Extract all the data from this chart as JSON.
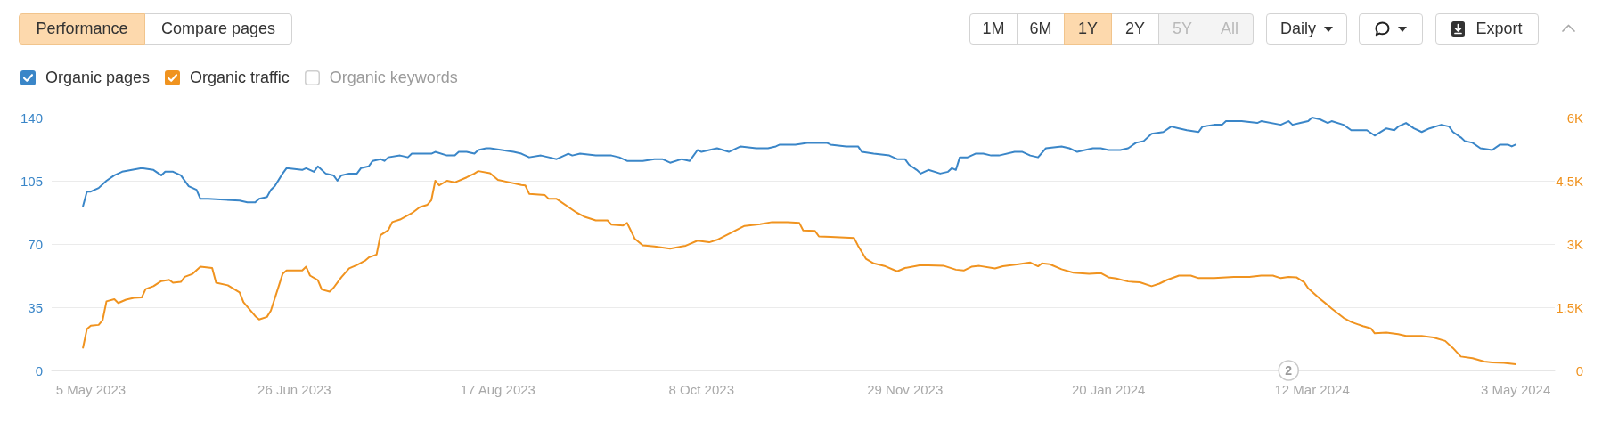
{
  "chart_data": {
    "type": "line",
    "series": [
      {
        "name": "Organic pages",
        "color": "#3a86c8",
        "axis": "y",
        "x": [
          "2023-05-03",
          "2023-05-04",
          "2023-05-05",
          "2023-05-07",
          "2023-05-09",
          "2023-05-11",
          "2023-05-13",
          "2023-05-18",
          "2023-05-21",
          "2023-05-23",
          "2023-05-24",
          "2023-05-26",
          "2023-05-28",
          "2023-05-30",
          "2023-06-01",
          "2023-06-02",
          "2023-06-04",
          "2023-06-12",
          "2023-06-14",
          "2023-06-16",
          "2023-06-17",
          "2023-06-19",
          "2023-06-20",
          "2023-06-21",
          "2023-06-23",
          "2023-06-24",
          "2023-06-28",
          "2023-06-29",
          "2023-07-01",
          "2023-07-02",
          "2023-07-04",
          "2023-07-06",
          "2023-07-07",
          "2023-07-08",
          "2023-07-10",
          "2023-07-12",
          "2023-07-13",
          "2023-07-15",
          "2023-07-16",
          "2023-07-18",
          "2023-07-19",
          "2023-07-20",
          "2023-07-23",
          "2023-07-25",
          "2023-07-26",
          "2023-07-31",
          "2023-08-01",
          "2023-08-04",
          "2023-08-06",
          "2023-08-07",
          "2023-08-09",
          "2023-08-11",
          "2023-08-12",
          "2023-08-14",
          "2023-08-15",
          "2023-08-18",
          "2023-08-21",
          "2023-08-23",
          "2023-08-25",
          "2023-08-28",
          "2023-08-30",
          "2023-09-01",
          "2023-09-04",
          "2023-09-05",
          "2023-09-07",
          "2023-09-11",
          "2023-09-15",
          "2023-09-17",
          "2023-09-19",
          "2023-09-23",
          "2023-09-26",
          "2023-09-28",
          "2023-09-30",
          "2023-10-03",
          "2023-10-05",
          "2023-10-07",
          "2023-10-08",
          "2023-10-10",
          "2023-10-12",
          "2023-10-15",
          "2023-10-18",
          "2023-10-22",
          "2023-10-25",
          "2023-10-27",
          "2023-10-28",
          "2023-11-01",
          "2023-11-04",
          "2023-11-09",
          "2023-11-10",
          "2023-11-14",
          "2023-11-17",
          "2023-11-18",
          "2023-11-21",
          "2023-11-25",
          "2023-11-27",
          "2023-11-29",
          "2023-11-30",
          "2023-12-02",
          "2023-12-03",
          "2023-12-05",
          "2023-12-08",
          "2023-12-10",
          "2023-12-11",
          "2023-12-12",
          "2023-12-13",
          "2023-12-15",
          "2023-12-17",
          "2023-12-19",
          "2023-12-21",
          "2023-12-23",
          "2023-12-27",
          "2023-12-29",
          "2023-12-31",
          "2024-01-02",
          "2024-01-04",
          "2024-01-08",
          "2024-01-10",
          "2024-01-12",
          "2024-01-16",
          "2024-01-18",
          "2024-01-20",
          "2024-01-23",
          "2024-01-25",
          "2024-01-27",
          "2024-01-29",
          "2024-01-31",
          "2024-02-03",
          "2024-02-05",
          "2024-02-07",
          "2024-02-09",
          "2024-02-12",
          "2024-02-13",
          "2024-02-16",
          "2024-02-18",
          "2024-02-19",
          "2024-02-23",
          "2024-02-27",
          "2024-02-28",
          "2024-03-04",
          "2024-03-06",
          "2024-03-07",
          "2024-03-09",
          "2024-03-11",
          "2024-03-12",
          "2024-03-14",
          "2024-03-16",
          "2024-03-17",
          "2024-03-20",
          "2024-03-22",
          "2024-03-26",
          "2024-03-28",
          "2024-03-31",
          "2024-04-02",
          "2024-04-03",
          "2024-04-05",
          "2024-04-07",
          "2024-04-09",
          "2024-04-11",
          "2024-04-14",
          "2024-04-16",
          "2024-04-17",
          "2024-04-19",
          "2024-04-20",
          "2024-04-22",
          "2024-04-24",
          "2024-04-27",
          "2024-04-29",
          "2024-05-01",
          "2024-05-02",
          "2024-05-03"
        ],
        "values": [
          91,
          99,
          99,
          101,
          105,
          108,
          110,
          112,
          111,
          108,
          110,
          110,
          108,
          102,
          100,
          95,
          95,
          94,
          93,
          93,
          95,
          96,
          100,
          102,
          109,
          112,
          111,
          112,
          110,
          113,
          109,
          108,
          105,
          108,
          109,
          109,
          112,
          113,
          116,
          117,
          116,
          118,
          119,
          118,
          120,
          120,
          121,
          119,
          119,
          121,
          121,
          120,
          122,
          123,
          123,
          122,
          121,
          120,
          118,
          119,
          118,
          117,
          120,
          119,
          120,
          119,
          119,
          118,
          116,
          116,
          117,
          117,
          115,
          117,
          116,
          122,
          121,
          122,
          123,
          121,
          124,
          123,
          123,
          124,
          125,
          125,
          126,
          126,
          125,
          124,
          124,
          121,
          120,
          119,
          117,
          117,
          114,
          111,
          109,
          111,
          109,
          110,
          112,
          111,
          118,
          118,
          120,
          120,
          119,
          119,
          121,
          121,
          119,
          118,
          123,
          124,
          123,
          121,
          123,
          123,
          122,
          122,
          123,
          126,
          127,
          131,
          132,
          135,
          134,
          133,
          132,
          135,
          136,
          136,
          138,
          138,
          137,
          138,
          136,
          138,
          136,
          137,
          138,
          140,
          139,
          137,
          138,
          136,
          133,
          133,
          130,
          134,
          133,
          135,
          137,
          134,
          132,
          134,
          136,
          135,
          132,
          129,
          127,
          126,
          123,
          122,
          125,
          125,
          124,
          125
        ]
      },
      {
        "name": "Organic traffic",
        "color": "#f0931f",
        "axis": "y2",
        "x": [
          "2023-05-03",
          "2023-05-04",
          "2023-05-05",
          "2023-05-07",
          "2023-05-08",
          "2023-05-09",
          "2023-05-11",
          "2023-05-12",
          "2023-05-14",
          "2023-05-16",
          "2023-05-18",
          "2023-05-19",
          "2023-05-21",
          "2023-05-23",
          "2023-05-25",
          "2023-05-26",
          "2023-05-28",
          "2023-05-29",
          "2023-05-31",
          "2023-06-02",
          "2023-06-05",
          "2023-06-06",
          "2023-06-09",
          "2023-06-12",
          "2023-06-13",
          "2023-06-16",
          "2023-06-17",
          "2023-06-19",
          "2023-06-20",
          "2023-06-23",
          "2023-06-24",
          "2023-06-28",
          "2023-06-29",
          "2023-06-30",
          "2023-07-02",
          "2023-07-03",
          "2023-07-05",
          "2023-07-06",
          "2023-07-08",
          "2023-07-10",
          "2023-07-12",
          "2023-07-14",
          "2023-07-15",
          "2023-07-17",
          "2023-07-18",
          "2023-07-20",
          "2023-07-21",
          "2023-07-23",
          "2023-07-26",
          "2023-07-28",
          "2023-07-30",
          "2023-07-31",
          "2023-08-01",
          "2023-08-02",
          "2023-08-04",
          "2023-08-06",
          "2023-08-09",
          "2023-08-11",
          "2023-08-12",
          "2023-08-15",
          "2023-08-17",
          "2023-08-20",
          "2023-08-22",
          "2023-08-23",
          "2023-08-24",
          "2023-08-25",
          "2023-08-29",
          "2023-08-30",
          "2023-09-01",
          "2023-09-06",
          "2023-09-08",
          "2023-09-11",
          "2023-09-14",
          "2023-09-15",
          "2023-09-18",
          "2023-09-19",
          "2023-09-21",
          "2023-09-23",
          "2023-09-26",
          "2023-09-30",
          "2023-10-04",
          "2023-10-07",
          "2023-10-10",
          "2023-10-12",
          "2023-10-16",
          "2023-10-19",
          "2023-10-23",
          "2023-10-26",
          "2023-10-30",
          "2023-11-02",
          "2023-11-03",
          "2023-11-06",
          "2023-11-07",
          "2023-11-10",
          "2023-11-16",
          "2023-11-17",
          "2023-11-19",
          "2023-11-21",
          "2023-11-24",
          "2023-11-27",
          "2023-11-29",
          "2023-12-03",
          "2023-12-09",
          "2023-12-12",
          "2023-12-14",
          "2023-12-16",
          "2023-12-18",
          "2023-12-22",
          "2023-12-24",
          "2023-12-28",
          "2023-12-31",
          "2024-01-02",
          "2024-01-03",
          "2024-01-05",
          "2024-01-08",
          "2024-01-11",
          "2024-01-15",
          "2024-01-18",
          "2024-01-20",
          "2024-01-22",
          "2024-01-25",
          "2024-01-28",
          "2024-01-31",
          "2024-02-02",
          "2024-02-04",
          "2024-02-07",
          "2024-02-10",
          "2024-02-12",
          "2024-02-16",
          "2024-02-21",
          "2024-02-25",
          "2024-02-28",
          "2024-03-02",
          "2024-03-04",
          "2024-03-06",
          "2024-03-08",
          "2024-03-10",
          "2024-03-11",
          "2024-03-14",
          "2024-03-16",
          "2024-03-17",
          "2024-03-20",
          "2024-03-22",
          "2024-03-25",
          "2024-03-27",
          "2024-03-28",
          "2024-03-31",
          "2024-04-03",
          "2024-04-05",
          "2024-04-09",
          "2024-04-12",
          "2024-04-15",
          "2024-04-17",
          "2024-04-19",
          "2024-04-22",
          "2024-04-25",
          "2024-04-27",
          "2024-04-30",
          "2024-05-02",
          "2024-05-03"
        ],
        "values": [
          540,
          980,
          1060,
          1080,
          1190,
          1640,
          1690,
          1600,
          1680,
          1720,
          1730,
          1930,
          2000,
          2120,
          2150,
          2080,
          2100,
          2220,
          2290,
          2460,
          2430,
          2080,
          2020,
          1850,
          1620,
          1290,
          1210,
          1270,
          1420,
          2290,
          2370,
          2370,
          2460,
          2250,
          2140,
          1920,
          1870,
          1960,
          2210,
          2420,
          2500,
          2600,
          2680,
          2750,
          3210,
          3330,
          3520,
          3580,
          3730,
          3870,
          3930,
          4040,
          4500,
          4390,
          4500,
          4460,
          4580,
          4670,
          4730,
          4680,
          4520,
          4460,
          4420,
          4400,
          4390,
          4190,
          4160,
          4070,
          4070,
          3750,
          3650,
          3560,
          3560,
          3460,
          3440,
          3500,
          3120,
          2970,
          2940,
          2890,
          2960,
          3080,
          3040,
          3100,
          3290,
          3430,
          3470,
          3520,
          3520,
          3500,
          3320,
          3310,
          3180,
          3170,
          3140,
          2960,
          2650,
          2540,
          2470,
          2350,
          2430,
          2500,
          2480,
          2390,
          2370,
          2460,
          2480,
          2420,
          2470,
          2520,
          2560,
          2470,
          2540,
          2520,
          2400,
          2320,
          2290,
          2310,
          2210,
          2180,
          2110,
          2090,
          2000,
          2060,
          2150,
          2250,
          2250,
          2190,
          2190,
          2220,
          2220,
          2250,
          2250,
          2190,
          2220,
          2210,
          2090,
          1950,
          1700,
          1550,
          1470,
          1250,
          1150,
          1050,
          1000,
          880,
          900,
          860,
          820,
          820,
          780,
          700,
          530,
          330,
          290,
          210,
          190,
          180,
          160,
          150
        ]
      }
    ],
    "xlim": [
      "2023-04-25",
      "2024-05-13"
    ],
    "xticks": [
      {
        "value": "2023-05-05",
        "label": "5 May 2023"
      },
      {
        "value": "2023-06-26",
        "label": "26 Jun 2023"
      },
      {
        "value": "2023-08-17",
        "label": "17 Aug 2023"
      },
      {
        "value": "2023-10-08",
        "label": "8 Oct 2023"
      },
      {
        "value": "2023-11-29",
        "label": "29 Nov 2023"
      },
      {
        "value": "2024-01-20",
        "label": "20 Jan 2024"
      },
      {
        "value": "2024-03-12",
        "label": "12 Mar 2024"
      },
      {
        "value": "2024-05-03",
        "label": "3 May 2024"
      }
    ],
    "ylim": [
      0,
      140
    ],
    "yticks": [
      0,
      35,
      70,
      105,
      140
    ],
    "y2lim": [
      0,
      6000
    ],
    "y2ticks": [
      0,
      {
        "value": 1500,
        "label": "1.5K"
      },
      {
        "value": 3000,
        "label": "3K"
      },
      {
        "value": 4500,
        "label": "4.5K"
      },
      {
        "value": 6000,
        "label": "6K"
      }
    ],
    "ref_lines": [
      {
        "axis": "x",
        "value": "2024-05-03",
        "color": "#f7c995"
      }
    ],
    "annotations": [
      "Performance",
      "Compare pages",
      "1M",
      "6M",
      "1Y",
      "2Y",
      "5Y",
      "All",
      "Daily",
      "Export",
      "Organic keywords",
      {
        "text": "2",
        "x": "2024-03-06",
        "y": 0
      }
    ],
    "grid": "y",
    "legend": "top left",
    "marker": "none",
    "line_style": "solid"
  }
}
